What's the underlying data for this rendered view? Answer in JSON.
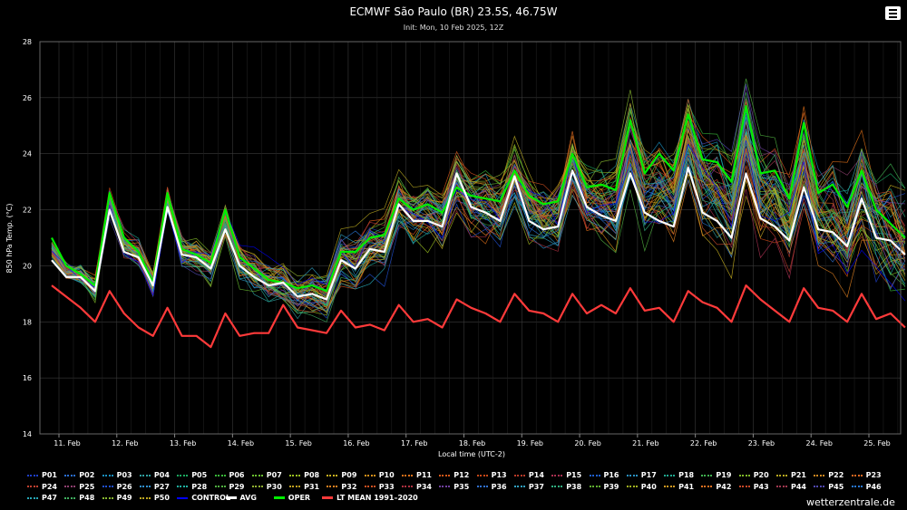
{
  "header": {
    "title": "ECMWF São Paulo (BR) 23.5S, 46.75W",
    "subtitle": "Init: Mon, 10 Feb 2025, 12Z"
  },
  "watermark": "wetterzentrale.de",
  "chart_data": {
    "type": "line",
    "ylabel": "850 hPa Temp. (°C)",
    "xlabel": "Local time (UTC-2)",
    "ylim": [
      14,
      28
    ],
    "yticks": [
      14,
      16,
      18,
      20,
      22,
      24,
      26,
      28
    ],
    "xtick_labels": [
      "11. Feb",
      "12. Feb",
      "13. Feb",
      "14. Feb",
      "15. Feb",
      "16. Feb",
      "17. Feb",
      "18. Feb",
      "19. Feb",
      "20. Feb",
      "21. Feb",
      "22. Feb",
      "23. Feb",
      "24. Feb",
      "25. Feb"
    ],
    "x_step_hours": 6,
    "x_start": "10 Feb 2025 09:00",
    "grid": true,
    "legend_position": "bottom",
    "series": [
      {
        "name": "AVG",
        "color": "#ffffff",
        "values": [
          20.2,
          19.6,
          19.6,
          19.1,
          22.0,
          20.5,
          20.3,
          19.3,
          22.1,
          20.4,
          20.3,
          19.9,
          21.3,
          20.0,
          19.6,
          19.3,
          19.4,
          18.9,
          19.0,
          18.8,
          20.2,
          19.9,
          20.6,
          20.5,
          22.2,
          21.6,
          21.6,
          21.4,
          23.3,
          22.1,
          21.9,
          21.6,
          23.2,
          21.6,
          21.3,
          21.4,
          23.4,
          22.1,
          21.8,
          21.6,
          23.3,
          21.9,
          21.6,
          21.4,
          23.5,
          21.9,
          21.6,
          21.0,
          23.3,
          21.7,
          21.4,
          20.9,
          22.8,
          21.3,
          21.2,
          20.7,
          22.4,
          21.0,
          20.9,
          20.4
        ]
      },
      {
        "name": "OPER",
        "color": "#00ee00",
        "values": [
          21.0,
          20.0,
          19.7,
          19.3,
          22.6,
          21.0,
          20.5,
          19.4,
          22.6,
          20.6,
          20.4,
          20.1,
          22.0,
          20.3,
          19.9,
          19.5,
          19.4,
          19.2,
          19.3,
          19.1,
          20.5,
          20.5,
          21.0,
          21.1,
          22.4,
          22.0,
          22.2,
          21.9,
          22.8,
          22.5,
          22.4,
          22.3,
          23.4,
          22.5,
          22.2,
          22.3,
          24.0,
          22.8,
          22.9,
          22.7,
          25.2,
          23.3,
          24.0,
          23.4,
          25.4,
          23.8,
          23.7,
          23.0,
          25.7,
          23.3,
          23.4,
          22.4,
          25.1,
          22.6,
          22.9,
          22.1,
          23.4,
          22.0,
          21.5,
          21.0
        ]
      },
      {
        "name": "LT MEAN 1991-2020",
        "color": "#ff3a3a",
        "values": [
          19.3,
          18.9,
          18.5,
          18.0,
          19.1,
          18.3,
          17.8,
          17.5,
          18.5,
          17.5,
          17.5,
          17.1,
          18.3,
          17.5,
          17.6,
          17.6,
          18.6,
          17.8,
          17.7,
          17.6,
          18.4,
          17.8,
          17.9,
          17.7,
          18.6,
          18.0,
          18.1,
          17.8,
          18.8,
          18.5,
          18.3,
          18.0,
          19.0,
          18.4,
          18.3,
          18.0,
          19.0,
          18.3,
          18.6,
          18.3,
          19.2,
          18.4,
          18.5,
          18.0,
          19.1,
          18.7,
          18.5,
          18.0,
          19.3,
          18.8,
          18.4,
          18.0,
          19.2,
          18.5,
          18.4,
          18.0,
          19.0,
          18.1,
          18.3,
          17.8
        ]
      }
    ]
  },
  "legend": {
    "members": [
      "P01",
      "P02",
      "P03",
      "P04",
      "P05",
      "P06",
      "P07",
      "P08",
      "P09",
      "P10",
      "P11",
      "P12",
      "P13",
      "P14",
      "P15",
      "P16",
      "P17",
      "P18",
      "P19",
      "P20",
      "P21",
      "P22",
      "P23",
      "P24",
      "P25",
      "P26",
      "P27",
      "P28",
      "P29",
      "P30",
      "P31",
      "P32",
      "P33",
      "P34",
      "P35",
      "P36",
      "P37",
      "P38",
      "P39",
      "P40",
      "P41",
      "P42",
      "P43",
      "P44",
      "P45",
      "P46",
      "P47",
      "P48",
      "P49",
      "P50"
    ],
    "control": "CONTROL",
    "avg": "AVG",
    "oper": "OPER",
    "ltmean": "LT MEAN 1991–2020",
    "colors": {
      "members": [
        "#1f3fc8",
        "#2a6fd6",
        "#1a8fbf",
        "#2fa0a0",
        "#1ca860",
        "#38b838",
        "#6abf30",
        "#9ac020",
        "#c8b020",
        "#d89018",
        "#e07018",
        "#d85818",
        "#c84818",
        "#b83a28",
        "#a83050",
        "#1f5fd0",
        "#2a90c0",
        "#20a890",
        "#40b050",
        "#80b828",
        "#b8a820",
        "#d08820",
        "#e06820",
        "#c04030",
        "#904070",
        "#2050d0",
        "#3090d0",
        "#20b0a0",
        "#50b040",
        "#90b030",
        "#c0a020",
        "#e08020",
        "#d05020",
        "#b03040",
        "#7040a0",
        "#3070d0",
        "#30a0c0",
        "#30b080",
        "#60b030",
        "#a0b020",
        "#d09820",
        "#e07020",
        "#c84828",
        "#a03850",
        "#5048b0",
        "#2878d8",
        "#28a8b8",
        "#40b060",
        "#88b830",
        "#c0a820"
      ],
      "control": "#0000ff",
      "avg": "#ffffff",
      "oper": "#00ee00",
      "ltmean": "#ff3a3a"
    }
  }
}
